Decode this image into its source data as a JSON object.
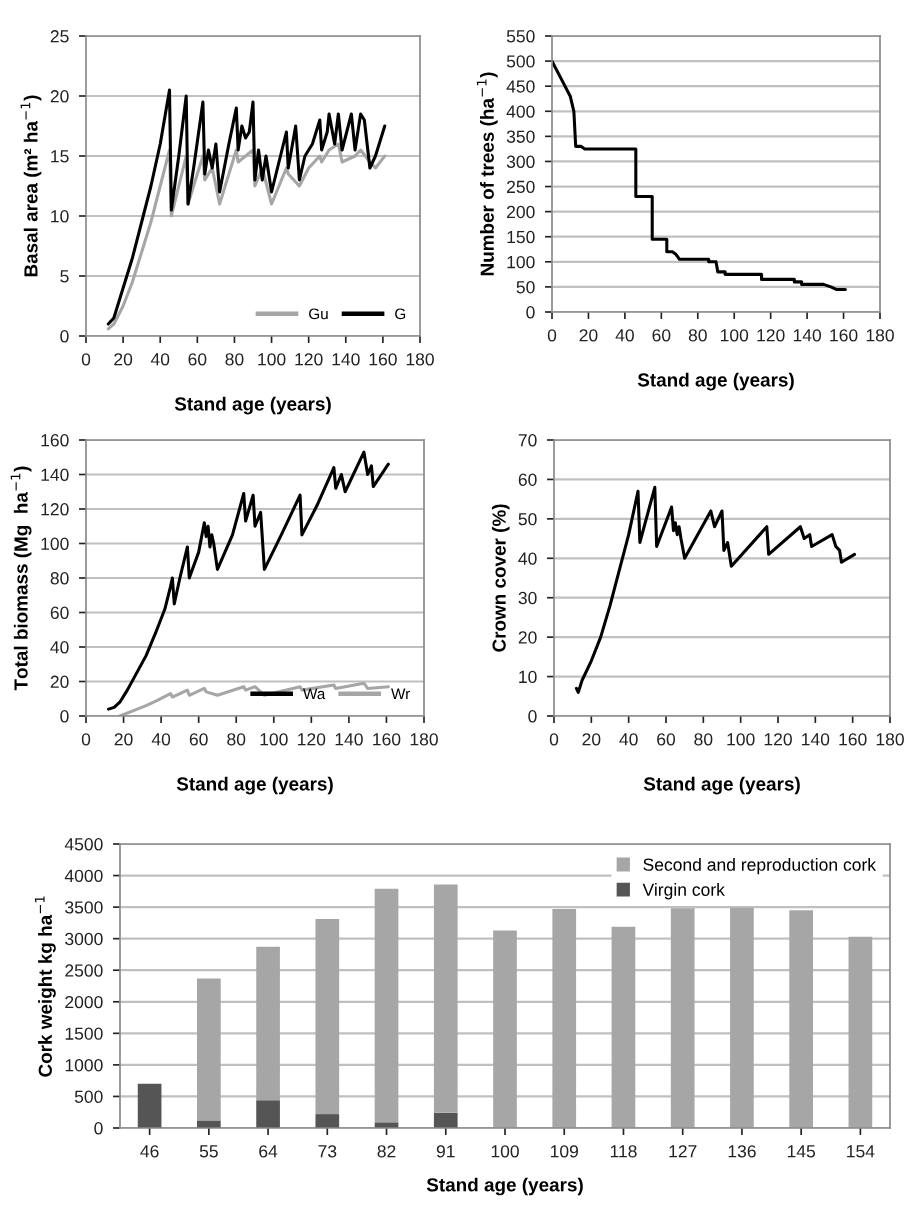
{
  "chart_data": [
    {
      "type": "line",
      "xlabel": "Stand age (years)",
      "ylabel": "Basal area (m² ha$^{−1}$)",
      "xlim": [
        0,
        180
      ],
      "xticks": [
        0,
        20,
        40,
        60,
        80,
        100,
        120,
        140,
        160,
        180
      ],
      "ylim": [
        0,
        25
      ],
      "yticks": [
        0,
        5,
        10,
        15,
        20,
        25
      ],
      "grid": "y",
      "legend": "bottom right",
      "series": [
        {
          "name": "Gu",
          "color": "#a6a6a6",
          "x": [
            12,
            15,
            20,
            25,
            30,
            35,
            40,
            45,
            46,
            50,
            54,
            55,
            58,
            63,
            64,
            68,
            72,
            77,
            81,
            82,
            86,
            90,
            91,
            95,
            100,
            108,
            109,
            115,
            120,
            126,
            127,
            131,
            136,
            138,
            145,
            148,
            153,
            156,
            161
          ],
          "values": [
            0.6,
            1,
            2.5,
            4.5,
            7,
            9.5,
            12.5,
            15.5,
            10,
            12.5,
            15,
            11,
            12.5,
            15,
            13,
            14,
            11,
            13.5,
            15.5,
            14.5,
            15,
            15.5,
            12.5,
            14,
            11,
            14,
            13.5,
            12.5,
            14,
            15,
            14.5,
            15.5,
            16,
            14.5,
            15,
            15.5,
            14.5,
            14,
            15
          ]
        },
        {
          "name": "G",
          "color": "#000000",
          "x": [
            12,
            15,
            20,
            25,
            30,
            35,
            40,
            45,
            46,
            50,
            54,
            55,
            58,
            63,
            64,
            66,
            68,
            70,
            72,
            77,
            81,
            82,
            84,
            86,
            88,
            90,
            91,
            93,
            95,
            97,
            100,
            108,
            109,
            113,
            115,
            118,
            122,
            126,
            127,
            130,
            131,
            134,
            136,
            138,
            143,
            145,
            148,
            150,
            153,
            156,
            161
          ],
          "values": [
            1,
            1.5,
            4,
            6.5,
            9.5,
            12.5,
            16,
            20.5,
            10.5,
            15,
            20,
            11,
            14,
            19.5,
            13.5,
            15.5,
            14,
            16,
            12,
            16,
            19,
            15.5,
            17.5,
            16.5,
            17,
            19.5,
            13,
            15.5,
            13,
            15,
            12,
            17,
            14,
            17.5,
            13,
            15,
            16,
            18,
            15.5,
            17,
            18.5,
            16,
            18.5,
            15.5,
            18.5,
            15.5,
            18.5,
            18,
            14,
            15,
            17.5
          ]
        }
      ]
    },
    {
      "type": "line",
      "xlabel": "Stand age (years)",
      "ylabel": "Number of trees (ha$^{−1}$)",
      "xlim": [
        0,
        180
      ],
      "xticks": [
        0,
        20,
        40,
        60,
        80,
        100,
        120,
        140,
        160,
        180
      ],
      "ylim": [
        0,
        550
      ],
      "yticks": [
        0,
        50,
        100,
        150,
        200,
        250,
        300,
        350,
        400,
        450,
        500,
        550
      ],
      "grid": "y",
      "series": [
        {
          "color": "#000000",
          "x": [
            0,
            5,
            10,
            12,
            13,
            16,
            18,
            46,
            46,
            55,
            55,
            63,
            63,
            66,
            68,
            70,
            86,
            86,
            90,
            91,
            95,
            95,
            115,
            115,
            133,
            133,
            137,
            137,
            149,
            153,
            156,
            161
          ],
          "values": [
            500,
            465,
            430,
            400,
            330,
            330,
            325,
            325,
            230,
            230,
            145,
            145,
            120,
            120,
            115,
            105,
            105,
            100,
            100,
            80,
            80,
            75,
            75,
            65,
            65,
            60,
            60,
            55,
            55,
            50,
            45,
            45
          ]
        }
      ]
    },
    {
      "type": "line",
      "xlabel": "Stand age (years)",
      "ylabel": "Total biomass (Mg  ha$^{−1}$)",
      "xlim": [
        0,
        180
      ],
      "xticks": [
        0,
        20,
        40,
        60,
        80,
        100,
        120,
        140,
        160,
        180
      ],
      "ylim": [
        0,
        160
      ],
      "yticks": [
        0,
        20,
        40,
        60,
        80,
        100,
        120,
        140,
        160
      ],
      "grid": "y",
      "legend": "bottom right",
      "series": [
        {
          "name": "Wa",
          "color": "#000000",
          "x": [
            12,
            15,
            18,
            22,
            27,
            32,
            37,
            42,
            45,
            46,
            47,
            50,
            54,
            55,
            60,
            63,
            64,
            65,
            66,
            67,
            68,
            70,
            78,
            84,
            85,
            89,
            90,
            93,
            95,
            104,
            114,
            115,
            123,
            132,
            133,
            136,
            138,
            148,
            150,
            152,
            153,
            161
          ],
          "values": [
            4,
            5,
            8,
            15,
            25,
            35,
            48,
            62,
            75,
            80,
            65,
            80,
            98,
            80,
            95,
            112,
            104,
            110,
            98,
            105,
            100,
            85,
            105,
            129,
            113,
            128,
            110,
            118,
            85,
            105,
            128,
            105,
            122,
            144,
            132,
            140,
            130,
            153,
            140,
            145,
            133,
            146
          ]
        },
        {
          "name": "Wr",
          "color": "#a6a6a6",
          "x": [
            18,
            25,
            32,
            38,
            45,
            46,
            50,
            54,
            55,
            63,
            64,
            70,
            84,
            85,
            90,
            95,
            114,
            115,
            132,
            133,
            148,
            150,
            161
          ],
          "values": [
            0,
            3,
            6,
            9,
            13,
            11,
            13,
            15,
            12,
            16,
            14,
            12,
            17,
            15,
            17,
            12,
            17,
            15,
            18,
            16,
            19,
            16,
            17
          ]
        }
      ]
    },
    {
      "type": "line",
      "xlabel": "Stand age (years)",
      "ylabel": "Crown cover (%)",
      "xlim": [
        0,
        180
      ],
      "xticks": [
        0,
        20,
        40,
        60,
        80,
        100,
        120,
        140,
        160,
        180
      ],
      "ylim": [
        0,
        70
      ],
      "yticks": [
        0,
        10,
        20,
        30,
        40,
        50,
        60,
        70
      ],
      "grid": "y",
      "series": [
        {
          "color": "#000000",
          "x": [
            12,
            13,
            15,
            20,
            25,
            30,
            35,
            40,
            45,
            46,
            54,
            55,
            63,
            64,
            65,
            66,
            67,
            68,
            70,
            84,
            86,
            90,
            91,
            93,
            95,
            114,
            115,
            132,
            134,
            137,
            138,
            149,
            151,
            153,
            154,
            161
          ],
          "values": [
            7,
            6,
            9,
            14,
            20,
            28,
            37,
            46,
            57,
            44,
            58,
            43,
            53,
            47,
            49,
            46,
            48,
            45,
            40,
            52,
            48,
            52,
            42,
            44,
            38,
            48,
            41,
            48,
            45,
            46,
            43,
            46,
            43,
            42,
            39,
            41
          ]
        }
      ]
    },
    {
      "type": "bar",
      "stacked": true,
      "xlabel": "Stand age (years)",
      "ylabel": "Cork weight kg ha$^{−1}$",
      "categories": [
        "46",
        "55",
        "64",
        "73",
        "82",
        "91",
        "100",
        "109",
        "118",
        "127",
        "136",
        "145",
        "154"
      ],
      "ylim": [
        0,
        4500
      ],
      "yticks": [
        0,
        500,
        1000,
        1500,
        2000,
        2500,
        3000,
        3500,
        4000,
        4500
      ],
      "grid": "y",
      "legend": "top right",
      "series": [
        {
          "name": "Virgin cork",
          "color": "#555555",
          "values": [
            700,
            120,
            440,
            220,
            90,
            240,
            0,
            0,
            0,
            0,
            0,
            0,
            0
          ]
        },
        {
          "name": "Second and reproduction cork",
          "color": "#a6a6a6",
          "values": [
            0,
            2250,
            2430,
            3090,
            3700,
            3620,
            3130,
            3470,
            3190,
            3480,
            3490,
            3450,
            3030
          ]
        }
      ]
    }
  ]
}
